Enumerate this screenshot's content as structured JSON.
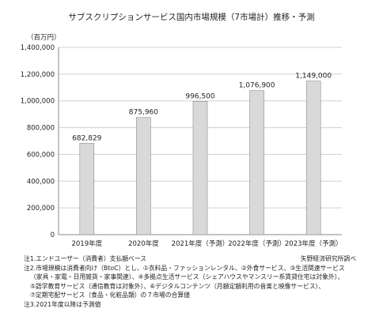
{
  "chart_data": {
    "type": "bar",
    "title": "サブスクリプションサービス国内市場規模（7市場計）推移・予測",
    "unit_label": "（百万円）",
    "categories": [
      "2019年度",
      "2020年度",
      "2021年度（予測）",
      "2022年度（予測）",
      "2023年度（予測）"
    ],
    "values": [
      682829,
      875960,
      996500,
      1076900,
      1149000
    ],
    "value_labels": [
      "682,829",
      "875,960",
      "996,500",
      "1,076,900",
      "1,149,000"
    ],
    "ylim": [
      0,
      1400000
    ],
    "yticks": [
      0,
      200000,
      400000,
      600000,
      800000,
      1000000,
      1200000,
      1400000
    ],
    "ytick_labels": [
      "0",
      "200,000",
      "400,000",
      "600,000",
      "800,000",
      "1,000,000",
      "1,200,000",
      "1,400,000"
    ],
    "grid": true,
    "bar_color": "#d9d9d9",
    "bar_edge_color": "#8c8c8c"
  },
  "notes": [
    "注1.エンドユーザー（消費者）支払額ベース",
    "注2.市場規模は消費者向け（BtoC）とし、①衣料品・ファッションレンタル、②外食サービス、③生活関連サービス",
    "（家具・家電・日用雑貨・家事関連）、④多拠点生活サービス（シェアハウスやマンスリー系賃貸住宅は対象外）、",
    "⑤語学教育サービス（通信教育は対象外）、⑥デジタルコンテンツ（月額定額利用の音楽と映像サービス）、",
    "⑦定期宅配サービス（食品・化粧品類）の７市場の合算値",
    "注3.2021年度以降は予測値"
  ],
  "source": "矢野経済研究所調べ"
}
